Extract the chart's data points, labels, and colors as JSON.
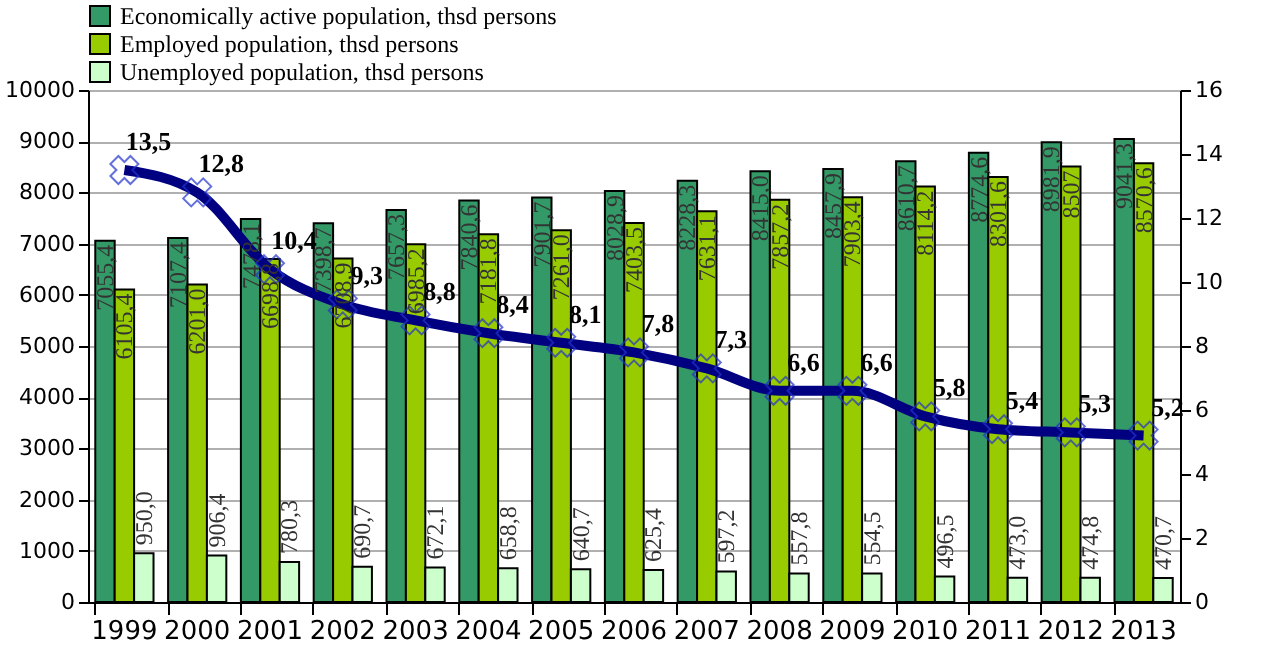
{
  "chart_data": {
    "type": "bar",
    "categories": [
      "1999",
      "2000",
      "2001",
      "2002",
      "2003",
      "2004",
      "2005",
      "2006",
      "2007",
      "2008",
      "2009",
      "2010",
      "2011",
      "2012",
      "2013"
    ],
    "series": [
      {
        "name": "Economically active population, thsd persons",
        "color": "#339966",
        "values": [
          7055.4,
          7107.4,
          7478.1,
          7398.7,
          7657.3,
          7840.6,
          7901.7,
          8028.9,
          8228.3,
          8415.0,
          8457.9,
          8610.7,
          8774.6,
          8981.9,
          9041.3
        ],
        "value_labels": [
          "7055,4",
          "7107,4",
          "7478,1",
          "7398,7",
          "7657,3",
          "7840,6",
          "7901,7",
          "8028,9",
          "8228,3",
          "8415,0",
          "8457,9",
          "8610,7",
          "8774,6",
          "8981,9",
          "9041,3"
        ]
      },
      {
        "name": "Employed population, thsd persons",
        "color": "#99cc00",
        "values": [
          6105.4,
          6201.0,
          6698.8,
          6708.9,
          6985.2,
          7181.8,
          7261.0,
          7403.5,
          7631.1,
          7857.2,
          7903.4,
          8114.2,
          8301.6,
          8507,
          8570.6
        ],
        "value_labels": [
          "6105,4",
          "6201,0",
          "6698,8",
          "6708,9",
          "6985,2",
          "7181,8",
          "7261,0",
          "7403,5",
          "7631,1",
          "7857,2",
          "7903,4",
          "8114,2",
          "8301,6",
          "8507",
          "8570,6"
        ]
      },
      {
        "name": "Unemployed population, thsd persons",
        "color": "#ccffcc",
        "values": [
          950.0,
          906.4,
          780.3,
          690.7,
          672.1,
          658.8,
          640.7,
          625.4,
          597.2,
          557.8,
          554.5,
          496.5,
          473.0,
          474.8,
          470.7
        ],
        "value_labels": [
          "950,0",
          "906,4",
          "780,3",
          "690,7",
          "672,1",
          "658,8",
          "640,7",
          "625,4",
          "597,2",
          "557,8",
          "554,5",
          "496,5",
          "473,0",
          "474,8",
          "470,7"
        ]
      },
      {
        "type": "line",
        "axis": "y2",
        "color": "#000080",
        "marker": "cross",
        "values": [
          13.5,
          12.8,
          10.4,
          9.3,
          8.8,
          8.4,
          8.1,
          7.8,
          7.3,
          6.6,
          6.6,
          5.8,
          5.4,
          5.3,
          5.2
        ],
        "value_labels": [
          "13,5",
          "12,8",
          "10,4",
          "9,3",
          "8,8",
          "8,4",
          "8,1",
          "7,8",
          "7,3",
          "6,6",
          "6,6",
          "5,8",
          "5,4",
          "5,3",
          "5,2"
        ]
      }
    ],
    "ylim": [
      0,
      10000
    ],
    "yticks": [
      0,
      1000,
      2000,
      3000,
      4000,
      5000,
      6000,
      7000,
      8000,
      9000,
      10000
    ],
    "y2lim": [
      0,
      16
    ],
    "y2ticks": [
      0,
      2,
      4,
      6,
      8,
      10,
      12,
      14,
      16
    ],
    "grid": "y",
    "legend": "top"
  }
}
